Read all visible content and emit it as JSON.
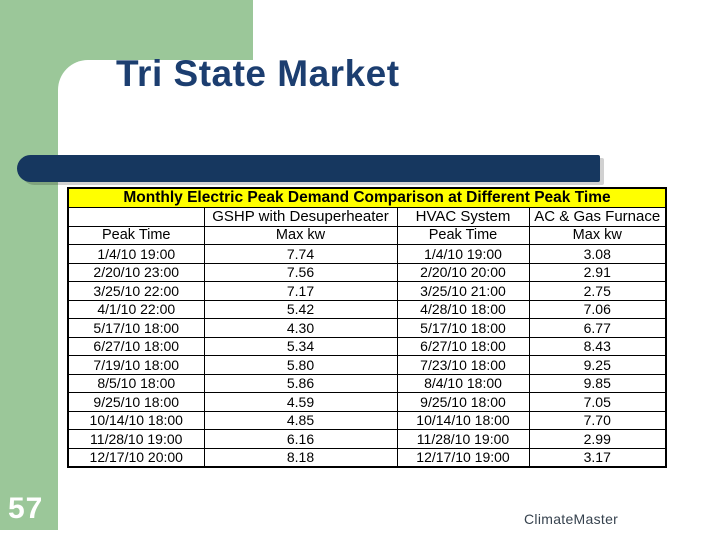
{
  "slide": {
    "title": "Tri State Market",
    "page_number": "57",
    "footer_brand": "ClimateMaster"
  },
  "table": {
    "title": "Monthly Electric Peak Demand Comparison at Different Peak Time",
    "group_headers": [
      "",
      "GSHP with Desuperheater",
      "HVAC System",
      "AC & Gas Furnace"
    ],
    "column_headers": [
      "Peak Time",
      "Max kw",
      "Peak Time",
      "Max kw"
    ],
    "rows": [
      [
        "1/4/10 19:00",
        "7.74",
        "1/4/10 19:00",
        "3.08"
      ],
      [
        "2/20/10 23:00",
        "7.56",
        "2/20/10 20:00",
        "2.91"
      ],
      [
        "3/25/10 22:00",
        "7.17",
        "3/25/10 21:00",
        "2.75"
      ],
      [
        "4/1/10 22:00",
        "5.42",
        "4/28/10 18:00",
        "7.06"
      ],
      [
        "5/17/10 18:00",
        "4.30",
        "5/17/10 18:00",
        "6.77"
      ],
      [
        "6/27/10 18:00",
        "5.34",
        "6/27/10 18:00",
        "8.43"
      ],
      [
        "7/19/10 18:00",
        "5.80",
        "7/23/10 18:00",
        "9.25"
      ],
      [
        "8/5/10 18:00",
        "5.86",
        "8/4/10 18:00",
        "9.85"
      ],
      [
        "9/25/10 18:00",
        "4.59",
        "9/25/10 18:00",
        "7.05"
      ],
      [
        "10/14/10 18:00",
        "4.85",
        "10/14/10 18:00",
        "7.70"
      ],
      [
        "11/28/10 19:00",
        "6.16",
        "11/28/10 19:00",
        "2.99"
      ],
      [
        "12/17/10 20:00",
        "8.18",
        "12/17/10 19:00",
        "3.17"
      ]
    ]
  },
  "colors": {
    "green": "#9bc799",
    "navy_bar": "#16375f",
    "title_text": "#1c3e70",
    "table_header_bg": "#ffff00",
    "footer_text": "#36424e"
  }
}
